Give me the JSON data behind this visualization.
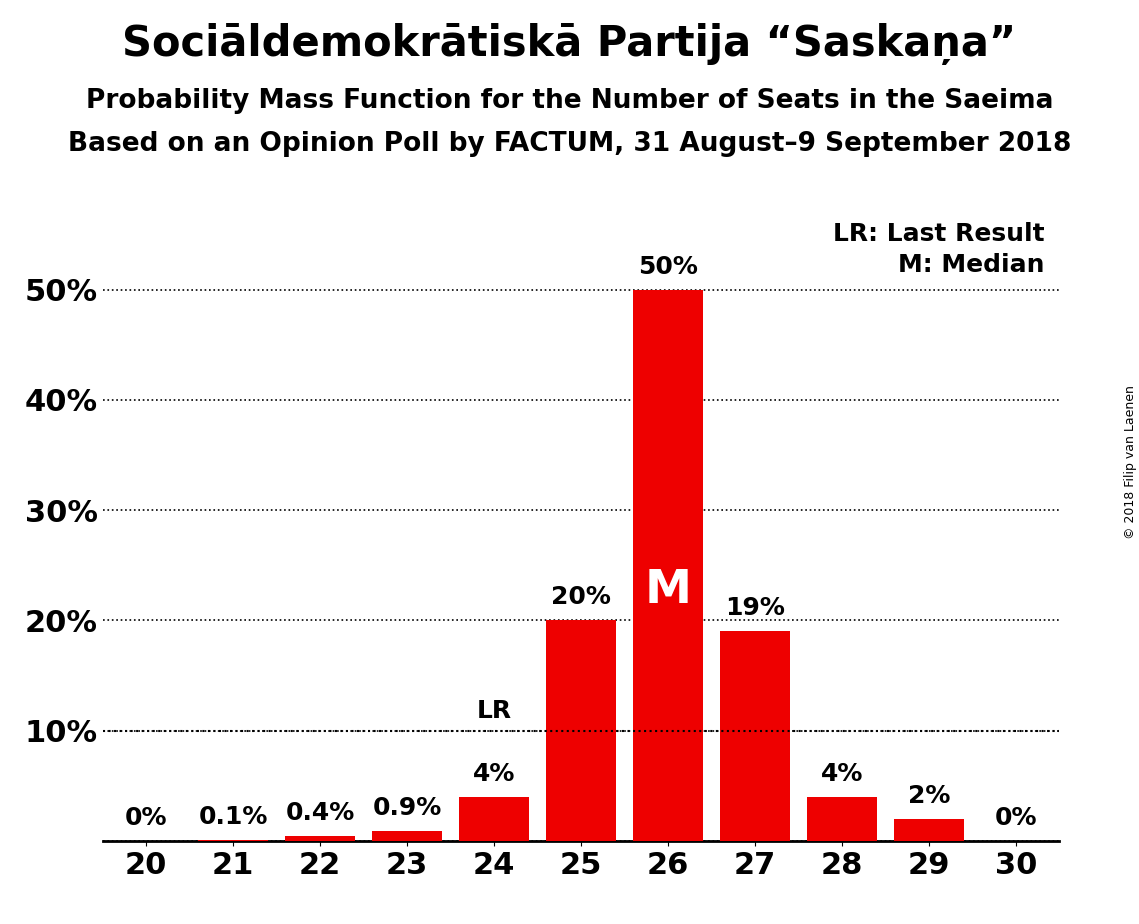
{
  "title": "Sociāldemokrātiskā Partija “Saskaņa”",
  "subtitle1": "Probability Mass Function for the Number of Seats in the Saeima",
  "subtitle2": "Based on an Opinion Poll by FACTUM, 31 August–9 September 2018",
  "copyright": "© 2018 Filip van Laenen",
  "seats": [
    20,
    21,
    22,
    23,
    24,
    25,
    26,
    27,
    28,
    29,
    30
  ],
  "probabilities": [
    0.0,
    0.1,
    0.4,
    0.9,
    4.0,
    20.0,
    50.0,
    19.0,
    4.0,
    2.0,
    0.0
  ],
  "bar_color": "#ee0000",
  "bar_labels": [
    "0%",
    "0.1%",
    "0.4%",
    "0.9%",
    "4%",
    "20%",
    "50%",
    "19%",
    "4%",
    "2%",
    "0%"
  ],
  "median_seat": 26,
  "last_result_seat": 24,
  "yticks": [
    0,
    10,
    20,
    30,
    40,
    50
  ],
  "ytick_labels": [
    "",
    "10%",
    "20%",
    "30%",
    "40%",
    "50%"
  ],
  "ylim": [
    0,
    57
  ],
  "xlim": [
    19.5,
    30.5
  ],
  "background_color": "#ffffff",
  "lr_line_y": 10,
  "legend_lr": "LR: Last Result",
  "legend_m": "M: Median",
  "title_fontsize": 30,
  "subtitle_fontsize": 19,
  "tick_fontsize": 22,
  "label_fontsize": 18,
  "m_fontsize": 34,
  "legend_fontsize": 18,
  "copyright_fontsize": 9
}
